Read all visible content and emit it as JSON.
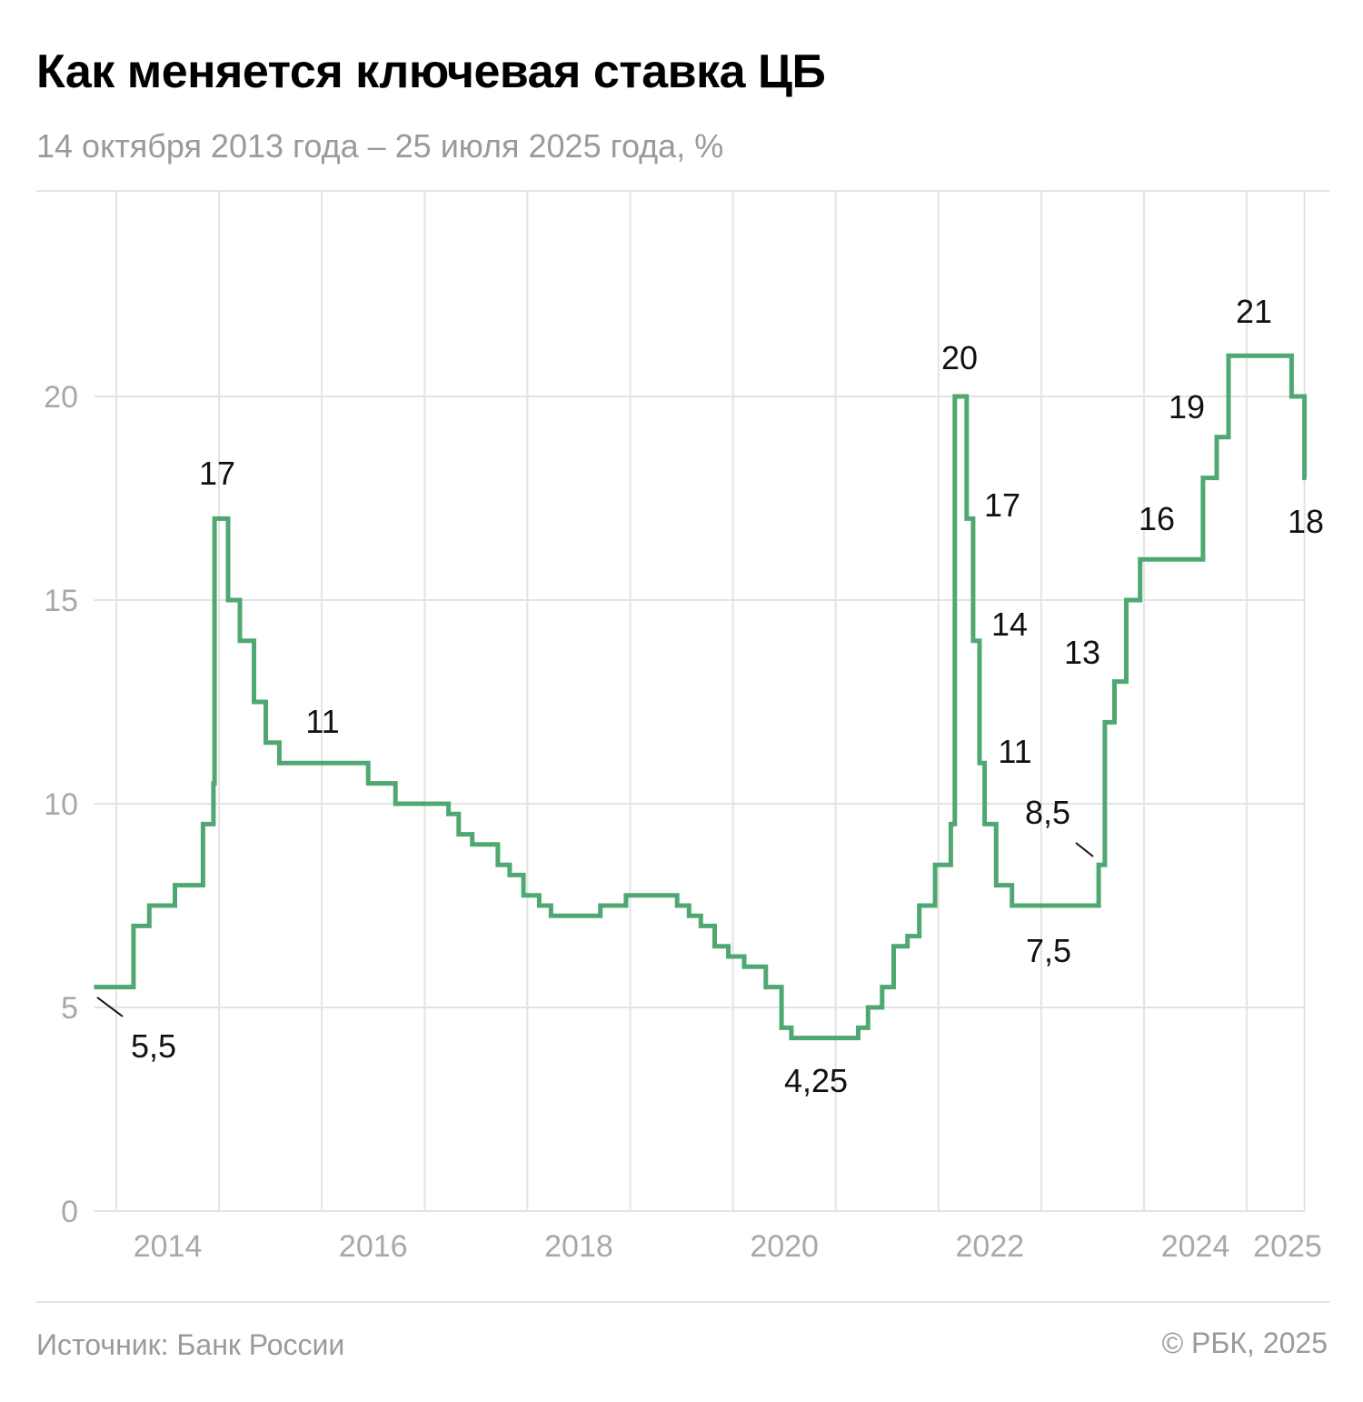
{
  "title": "Как меняется ключевая ставка ЦБ",
  "subtitle": "14 октября 2013 года – 25 июля 2025 года, %",
  "footer": {
    "source": "Источник: Банк России",
    "copyright": "© РБК, 2025"
  },
  "colors": {
    "line": "#4fa872",
    "grid": "#e3e3e3",
    "text": "#111111",
    "muted": "#9a9a9a"
  },
  "chart_data": {
    "type": "line",
    "step": true,
    "title": "Как меняется ключевая ставка ЦБ",
    "subtitle": "14 октября 2013 года – 25 июля 2025 года, %",
    "xlim": [
      "2013-10-14",
      "2025-07-25"
    ],
    "ylim": [
      0,
      25
    ],
    "grid": true,
    "y_ticks": [
      "0",
      "5",
      "10",
      "15",
      "20"
    ],
    "x_ticks": [
      "2014",
      "2016",
      "2018",
      "2020",
      "2022",
      "2024",
      "2025"
    ],
    "series": [
      {
        "points": [
          [
            "2013-10-14",
            5.5
          ],
          [
            "2014-03-03",
            7
          ],
          [
            "2014-04-28",
            7.5
          ],
          [
            "2014-07-28",
            8
          ],
          [
            "2014-11-05",
            9.5
          ],
          [
            "2014-12-12",
            10.5
          ],
          [
            "2014-12-16",
            17
          ],
          [
            "2015-02-02",
            15
          ],
          [
            "2015-03-16",
            14
          ],
          [
            "2015-05-05",
            12.5
          ],
          [
            "2015-06-16",
            11.5
          ],
          [
            "2015-08-03",
            11
          ],
          [
            "2016-06-14",
            10.5
          ],
          [
            "2016-09-19",
            10
          ],
          [
            "2017-03-27",
            9.75
          ],
          [
            "2017-05-02",
            9.25
          ],
          [
            "2017-06-19",
            9
          ],
          [
            "2017-09-18",
            8.5
          ],
          [
            "2017-10-30",
            8.25
          ],
          [
            "2017-12-18",
            7.75
          ],
          [
            "2018-02-12",
            7.5
          ],
          [
            "2018-03-26",
            7.25
          ],
          [
            "2018-09-17",
            7.5
          ],
          [
            "2018-12-17",
            7.75
          ],
          [
            "2019-06-17",
            7.5
          ],
          [
            "2019-07-29",
            7.25
          ],
          [
            "2019-09-09",
            7
          ],
          [
            "2019-10-28",
            6.5
          ],
          [
            "2019-12-16",
            6.25
          ],
          [
            "2020-02-10",
            6
          ],
          [
            "2020-04-27",
            5.5
          ],
          [
            "2020-06-22",
            4.5
          ],
          [
            "2020-07-27",
            4.25
          ],
          [
            "2021-03-22",
            4.5
          ],
          [
            "2021-04-26",
            5
          ],
          [
            "2021-06-15",
            5.5
          ],
          [
            "2021-07-26",
            6.5
          ],
          [
            "2021-09-13",
            6.75
          ],
          [
            "2021-10-25",
            7.5
          ],
          [
            "2021-12-20",
            8.5
          ],
          [
            "2022-02-14",
            9.5
          ],
          [
            "2022-02-28",
            20
          ],
          [
            "2022-04-11",
            17
          ],
          [
            "2022-05-04",
            14
          ],
          [
            "2022-05-27",
            11
          ],
          [
            "2022-06-14",
            9.5
          ],
          [
            "2022-07-25",
            8
          ],
          [
            "2022-09-19",
            7.5
          ],
          [
            "2023-07-24",
            8.5
          ],
          [
            "2023-08-15",
            12
          ],
          [
            "2023-09-18",
            13
          ],
          [
            "2023-10-30",
            15
          ],
          [
            "2023-12-18",
            16
          ],
          [
            "2024-07-29",
            18
          ],
          [
            "2024-09-16",
            19
          ],
          [
            "2024-10-28",
            21
          ],
          [
            "2025-06-09",
            20
          ],
          [
            "2025-07-25",
            18
          ]
        ]
      }
    ],
    "annotations": [
      "5,5",
      "17",
      "11",
      "4,25",
      "20",
      "17",
      "14",
      "11",
      "8,5",
      "7,5",
      "13",
      "16",
      "19",
      "21",
      "18"
    ]
  }
}
